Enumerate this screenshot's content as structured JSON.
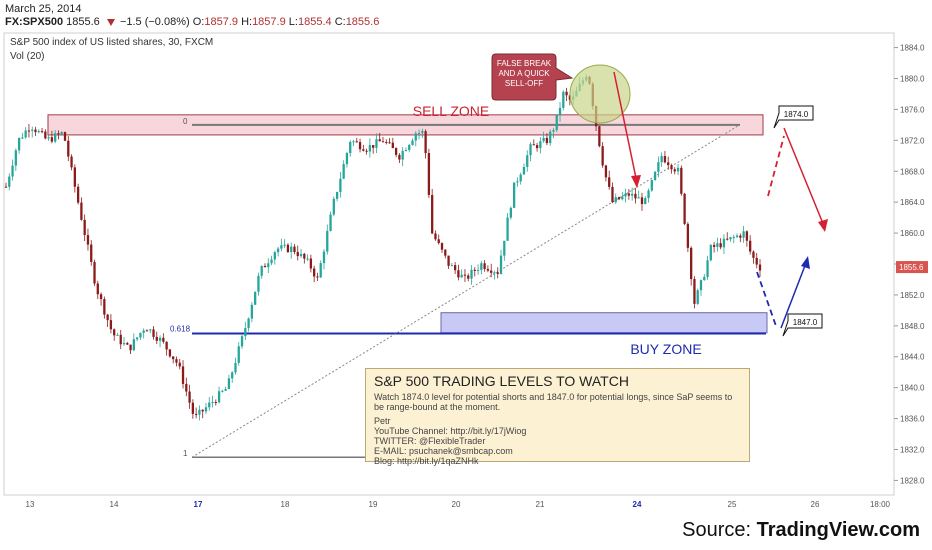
{
  "header": {
    "date": "March 25, 2014",
    "symbol": "FX:SPX500",
    "last": "1855.6",
    "change": "−1.5 (−0.08%)",
    "o_label": "O:",
    "o": "1857.9",
    "h_label": "H:",
    "h": "1857.9",
    "l_label": "L:",
    "l": "1855.4",
    "c_label": "C:",
    "c": "1855.6"
  },
  "chart_title": "S&P 500 index of US listed shares, 30, FXCM",
  "volume_label": "Vol (20)",
  "footer": {
    "prefix": "Source: ",
    "brand": "TradingView.com"
  },
  "colors": {
    "up": "#26a69a",
    "down": "#8b1a1a",
    "sell_zone": "#f8d7dc",
    "buy_zone": "#c9c9f5",
    "buy_line": "#1e2ab0",
    "note_bg": "#fdf1d3",
    "price_tag": "#d9534f",
    "callout": "#b5424f",
    "circle": "#c9d68a"
  },
  "chart_data": {
    "type": "candlestick",
    "y_ticks": [
      1828,
      1832,
      1836,
      1840,
      1844,
      1848,
      1852,
      1856,
      1860,
      1864,
      1868,
      1872,
      1876,
      1880,
      1884
    ],
    "y_tick_labels": [
      "1828.0",
      "1832.0",
      "1836.0",
      "1840.0",
      "1844.0",
      "1848.0",
      "1852.0",
      "1856.0",
      "1860.0",
      "1864.0",
      "1868.0",
      "1872.0",
      "1876.0",
      "1880.0",
      "1884.0"
    ],
    "ylim": [
      1826.5,
      1885.5
    ],
    "x_ticks": [
      "13",
      "14",
      "17",
      "18",
      "19",
      "20",
      "21",
      "24",
      "25",
      "26",
      "18:00"
    ],
    "x_ticks_bold": [
      "17",
      "24"
    ],
    "last_price": 1855.6,
    "last_price_label": "1855.6",
    "levels": [
      {
        "name": "sell-level",
        "value": 1874.0,
        "label": "1874.0",
        "fib_label": "0"
      },
      {
        "name": "buy-level",
        "value": 1847.0,
        "label": "1847.0",
        "fib_label": "0.618"
      },
      {
        "name": "fib-1",
        "value": 1831,
        "fib_label": "1"
      }
    ],
    "zones": [
      {
        "name": "sell-zone",
        "label": "SELL ZONE",
        "from": 1873.0,
        "to": 1875.0
      },
      {
        "name": "buy-zone",
        "label": "BUY ZONE",
        "from": 1847.5,
        "to": 1849.5
      }
    ],
    "callout": "FALSE BREAK AND A QUICK SELL-OFF",
    "anchors": [
      {
        "x": 0,
        "y": 1866
      },
      {
        "x": 1.5,
        "y": 1872
      },
      {
        "x": 3,
        "y": 1874
      },
      {
        "x": 5,
        "y": 1872
      },
      {
        "x": 7,
        "y": 1873
      },
      {
        "x": 9,
        "y": 1863
      },
      {
        "x": 11,
        "y": 1853
      },
      {
        "x": 13,
        "y": 1847
      },
      {
        "x": 15,
        "y": 1845
      },
      {
        "x": 17,
        "y": 1848
      },
      {
        "x": 19,
        "y": 1846
      },
      {
        "x": 21,
        "y": 1843
      },
      {
        "x": 23,
        "y": 1836
      },
      {
        "x": 25,
        "y": 1838
      },
      {
        "x": 27,
        "y": 1840
      },
      {
        "x": 29,
        "y": 1847
      },
      {
        "x": 31,
        "y": 1855
      },
      {
        "x": 33,
        "y": 1858
      },
      {
        "x": 35,
        "y": 1858
      },
      {
        "x": 37,
        "y": 1856
      },
      {
        "x": 38,
        "y": 1854
      },
      {
        "x": 40,
        "y": 1864
      },
      {
        "x": 42,
        "y": 1872
      },
      {
        "x": 44,
        "y": 1871
      },
      {
        "x": 46,
        "y": 1872
      },
      {
        "x": 48,
        "y": 1870
      },
      {
        "x": 50,
        "y": 1873
      },
      {
        "x": 51,
        "y": 1873
      },
      {
        "x": 52,
        "y": 1860
      },
      {
        "x": 54,
        "y": 1856
      },
      {
        "x": 56,
        "y": 1854
      },
      {
        "x": 58,
        "y": 1856
      },
      {
        "x": 60,
        "y": 1855
      },
      {
        "x": 62,
        "y": 1866
      },
      {
        "x": 64,
        "y": 1871
      },
      {
        "x": 66,
        "y": 1872
      },
      {
        "x": 67,
        "y": 1874
      },
      {
        "x": 68,
        "y": 1878
      },
      {
        "x": 69,
        "y": 1877
      },
      {
        "x": 70,
        "y": 1879
      },
      {
        "x": 71,
        "y": 1881
      },
      {
        "x": 72,
        "y": 1874
      },
      {
        "x": 73,
        "y": 1868
      },
      {
        "x": 74,
        "y": 1864
      },
      {
        "x": 76,
        "y": 1865
      },
      {
        "x": 78,
        "y": 1864
      },
      {
        "x": 80,
        "y": 1870
      },
      {
        "x": 82,
        "y": 1868
      },
      {
        "x": 83,
        "y": 1860
      },
      {
        "x": 84,
        "y": 1851
      },
      {
        "x": 85,
        "y": 1854
      },
      {
        "x": 86,
        "y": 1858
      },
      {
        "x": 88,
        "y": 1859
      },
      {
        "x": 90,
        "y": 1860
      },
      {
        "x": 91,
        "y": 1857
      },
      {
        "x": 92,
        "y": 1855.6
      }
    ],
    "projections": [
      {
        "name": "sell-projection",
        "points": [
          [
            1866,
            1874
          ],
          [
            1861,
            null
          ]
        ]
      },
      {
        "name": "buy-projection",
        "points": [
          [
            1855,
            1847
          ],
          [
            1857,
            null
          ]
        ]
      }
    ]
  },
  "note": {
    "title": "S&P 500 TRADING LEVELS TO WATCH",
    "body": "Watch 1874.0 level for potential shorts and 1847.0 for potential longs, since SaP seems to be range-bound at the moment.",
    "author": "Petr",
    "lines": [
      "YouTube Channel: http://bit.ly/17jWiog",
      "TWITTER: @FlexibleTrader",
      "E-MAIL: psuchanek@smbcap.com",
      "Blog: http://bit.ly/1qaZNHk"
    ]
  }
}
